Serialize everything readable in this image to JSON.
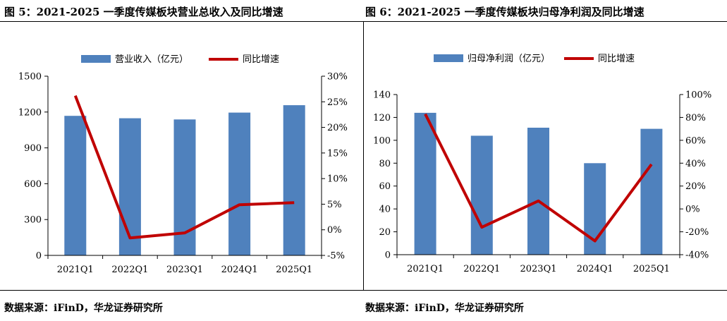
{
  "left_title": "图 5：2021-2025 一季度传媒板块营业总收入及同比增速",
  "right_title": "图 6：2021-2025 一季度传媒板块归母净利润及同比增速",
  "left_source": "数据来源：iFinD，华龙证券研究所",
  "right_source": "数据来源：iFinD，华龙证券研究所",
  "colors": {
    "bar": "#4f81bd",
    "line": "#c00000"
  },
  "chart_data": [
    {
      "type": "bar",
      "categories": [
        "2021Q1",
        "2022Q1",
        "2023Q1",
        "2024Q1",
        "2025Q1"
      ],
      "series": [
        {
          "name": "营业收入（亿元）",
          "type": "bar",
          "axis": "left",
          "values": [
            1168,
            1148,
            1138,
            1195,
            1257
          ]
        },
        {
          "name": "同比增速",
          "type": "line",
          "axis": "right",
          "values": [
            26.2,
            -1.6,
            -0.6,
            4.9,
            5.3
          ]
        }
      ],
      "ylim": [
        0,
        1500
      ],
      "yticks": [
        "0",
        "300",
        "600",
        "900",
        "1200",
        "1500"
      ],
      "y2lim": [
        -5,
        30
      ],
      "y2ticks": [
        "-5%",
        "0%",
        "5%",
        "10%",
        "15%",
        "20%",
        "25%",
        "30%"
      ],
      "legend": "top",
      "grid": false
    },
    {
      "type": "bar",
      "categories": [
        "2021Q1",
        "2022Q1",
        "2023Q1",
        "2024Q1",
        "2025Q1"
      ],
      "series": [
        {
          "name": "归母净利润（亿元）",
          "type": "bar",
          "axis": "left",
          "values": [
            124,
            104,
            111,
            80,
            110
          ]
        },
        {
          "name": "同比增速",
          "type": "line",
          "axis": "right",
          "values": [
            83,
            -16,
            7,
            -28,
            39
          ]
        }
      ],
      "ylim": [
        0,
        140
      ],
      "yticks": [
        "0",
        "20",
        "40",
        "60",
        "80",
        "100",
        "120",
        "140"
      ],
      "y2lim": [
        -40,
        100
      ],
      "y2ticks": [
        "-40%",
        "-20%",
        "0%",
        "20%",
        "40%",
        "60%",
        "80%",
        "100%"
      ],
      "legend": "top",
      "grid": false
    }
  ]
}
